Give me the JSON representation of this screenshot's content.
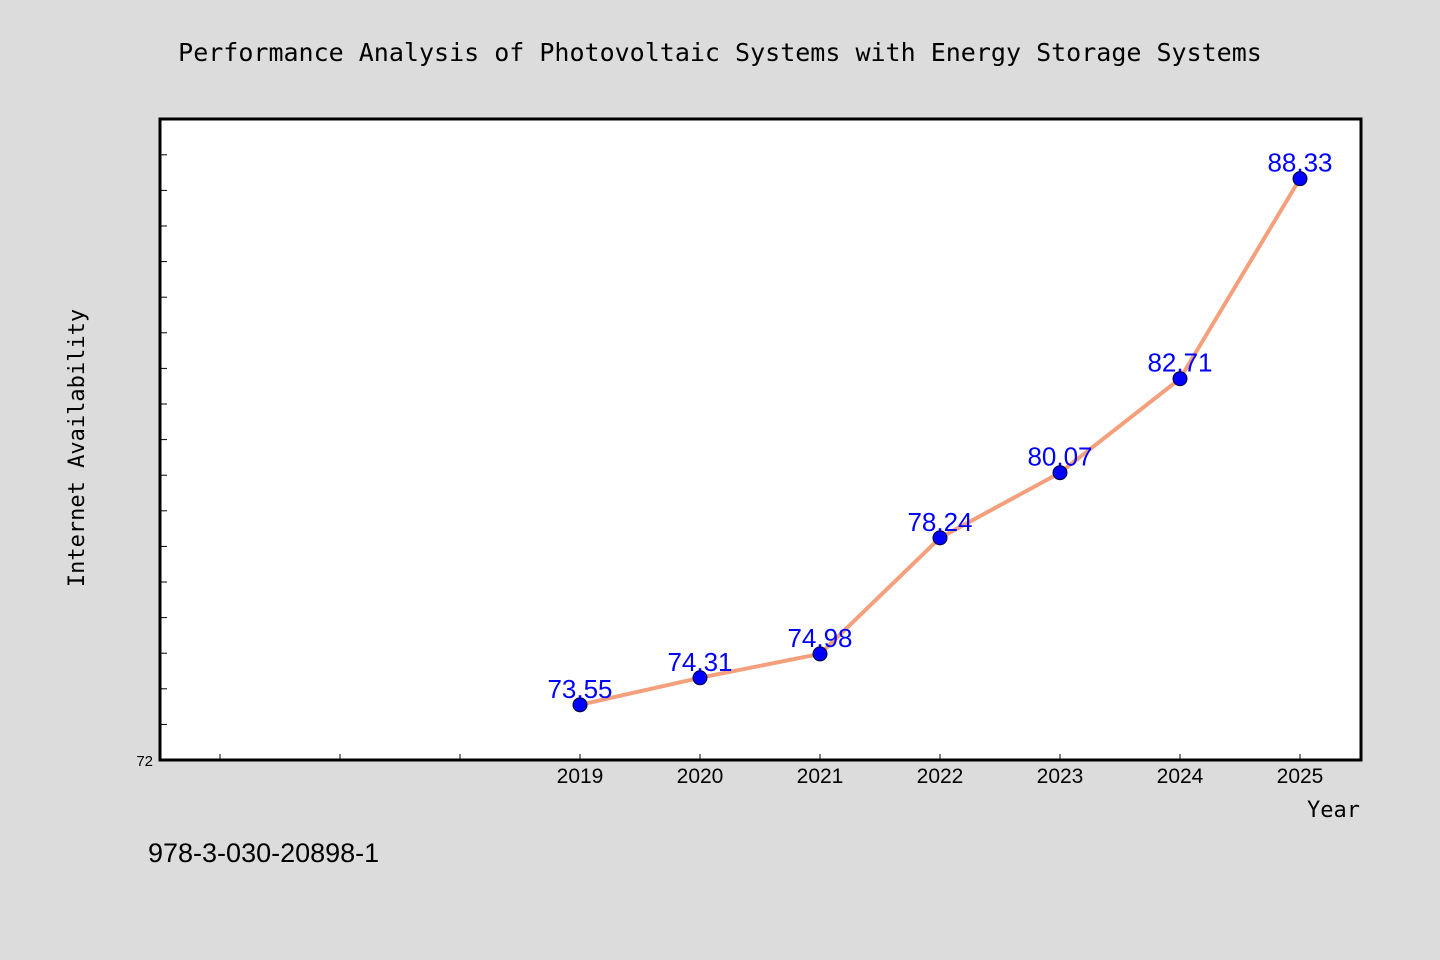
{
  "chart_data": {
    "type": "line",
    "title": "Performance Analysis of Photovoltaic Systems with Energy Storage Systems",
    "xlabel": "Year",
    "ylabel": "Internet Availability",
    "x": [
      "2019",
      "2020",
      "2021",
      "2022",
      "2023",
      "2024",
      "2025"
    ],
    "series": [
      {
        "values": [
          73.55,
          74.31,
          74.98,
          78.24,
          80.07,
          82.71,
          88.33
        ],
        "labels": [
          "73.55",
          "74.31",
          "74.98",
          "78.24",
          "80.07",
          "82.71",
          "88.33"
        ],
        "line_color": "#f4a07c",
        "marker_color": "#0000ff"
      }
    ],
    "ylim": [
      72,
      90
    ],
    "y_tick_label": "72",
    "grid": false,
    "legend": "none"
  },
  "footer_text": "978-3-030-20898-1",
  "colors": {
    "background": "#dcdcdc",
    "plot_area": "#ffffff",
    "data_label": "#0000ff"
  }
}
